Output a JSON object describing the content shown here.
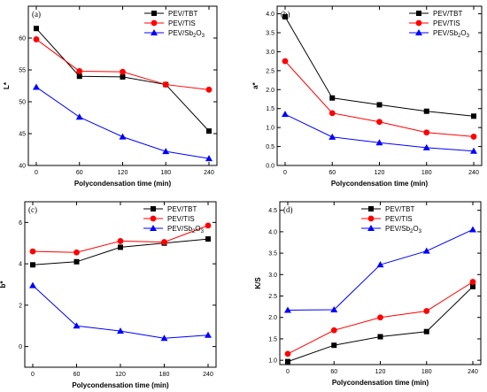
{
  "chart_data": [
    {
      "type": "line",
      "panel_label": "(a)",
      "x": [
        0,
        60,
        120,
        180,
        240
      ],
      "xticks": [
        "0",
        "60",
        "120",
        "180",
        "240"
      ],
      "xlabel": "Polycondensation time (min)",
      "ylabel": "L*",
      "ylim": [
        40,
        65
      ],
      "yticks": [
        40,
        45,
        50,
        55,
        60
      ],
      "ytick_labels": [
        "40",
        "45",
        "50",
        "55",
        "60"
      ],
      "legend": "top-right",
      "series": [
        {
          "name": "PEV/TBT",
          "color": "#000000",
          "marker": "square",
          "values": [
            61.5,
            54.0,
            53.9,
            52.7,
            45.4
          ]
        },
        {
          "name": "PEV/TIS",
          "color": "#ff0000",
          "marker": "circle",
          "values": [
            59.8,
            54.8,
            54.7,
            52.7,
            51.9
          ]
        },
        {
          "name": "PEV/Sb",
          "name_sub": "2",
          "name_tail": "O",
          "name_sub2": "3",
          "color": "#0000ff",
          "marker": "triangle",
          "values": [
            52.3,
            47.6,
            44.5,
            42.2,
            41.1
          ]
        }
      ]
    },
    {
      "type": "line",
      "panel_label": "(b)",
      "x": [
        0,
        60,
        120,
        180,
        240
      ],
      "xticks": [
        "0",
        "60",
        "120",
        "180",
        "240"
      ],
      "xlabel": "Polycondensation time (min)",
      "ylabel": "a*",
      "ylim": [
        0,
        4.2
      ],
      "yticks": [
        0,
        0.5,
        1.0,
        1.5,
        2.0,
        2.5,
        3.0,
        3.5,
        4.0
      ],
      "ytick_labels": [
        "0.0",
        "0.5",
        "1.0",
        "1.5",
        "2.0",
        "2.5",
        "3.0",
        "3.5",
        "4.0"
      ],
      "legend": "top-right",
      "series": [
        {
          "name": "PEV/TBT",
          "color": "#000000",
          "marker": "square",
          "values": [
            3.92,
            1.78,
            1.6,
            1.43,
            1.3
          ]
        },
        {
          "name": "PEV/TIS",
          "color": "#ff0000",
          "marker": "circle",
          "values": [
            2.75,
            1.38,
            1.15,
            0.87,
            0.76
          ]
        },
        {
          "name": "PEV/Sb",
          "name_sub": "2",
          "name_tail": "O",
          "name_sub2": "3",
          "color": "#0000ff",
          "marker": "triangle",
          "values": [
            1.35,
            0.75,
            0.6,
            0.47,
            0.38
          ]
        }
      ]
    },
    {
      "type": "line",
      "panel_label": "(c)",
      "x": [
        0,
        60,
        120,
        180,
        240
      ],
      "xticks": [
        "0",
        "60",
        "120",
        "180",
        "240"
      ],
      "xlabel": "Polycondensation time (min)",
      "ylabel": "b*",
      "ylim": [
        -1,
        7
      ],
      "yticks": [
        0,
        2,
        4,
        6
      ],
      "ytick_labels": [
        "0",
        "2",
        "4",
        "6"
      ],
      "legend": "top-right",
      "series": [
        {
          "name": "PEV/TBT",
          "color": "#000000",
          "marker": "square",
          "values": [
            3.95,
            4.1,
            4.8,
            5.0,
            5.2
          ]
        },
        {
          "name": "PEV/TIS",
          "color": "#ff0000",
          "marker": "circle",
          "values": [
            4.6,
            4.55,
            5.1,
            5.05,
            5.85
          ]
        },
        {
          "name": "PEV/Sb",
          "name_sub": "2",
          "name_tail": "O",
          "name_sub2": "3",
          "color": "#0000ff",
          "marker": "triangle",
          "values": [
            2.95,
            1.0,
            0.75,
            0.4,
            0.55
          ]
        }
      ]
    },
    {
      "type": "line",
      "panel_label": "(d)",
      "x": [
        0,
        60,
        120,
        180,
        240
      ],
      "xticks": [
        "0",
        "60",
        "120",
        "180",
        "240"
      ],
      "xlabel": "Polycondensation time (min)",
      "ylabel": "K/S",
      "ylim": [
        0.9,
        4.7
      ],
      "yticks": [
        1.0,
        1.5,
        2.0,
        2.5,
        3.0,
        3.5,
        4.0,
        4.5
      ],
      "ytick_labels": [
        "1.0",
        "1.5",
        "2.0",
        "2.5",
        "3.0",
        "3.5",
        "4.0",
        "4.5"
      ],
      "legend": "top-left",
      "series": [
        {
          "name": "PEV/TBT",
          "color": "#000000",
          "marker": "square",
          "values": [
            0.97,
            1.35,
            1.55,
            1.67,
            2.72
          ]
        },
        {
          "name": "PEV/TIS",
          "color": "#ff0000",
          "marker": "circle",
          "values": [
            1.15,
            1.7,
            2.0,
            2.15,
            2.83
          ]
        },
        {
          "name": "PEV/Sb",
          "name_sub": "2",
          "name_tail": "O",
          "name_sub2": "3",
          "color": "#0000ff",
          "marker": "triangle",
          "values": [
            2.17,
            2.18,
            3.23,
            3.55,
            4.05
          ]
        }
      ]
    }
  ]
}
